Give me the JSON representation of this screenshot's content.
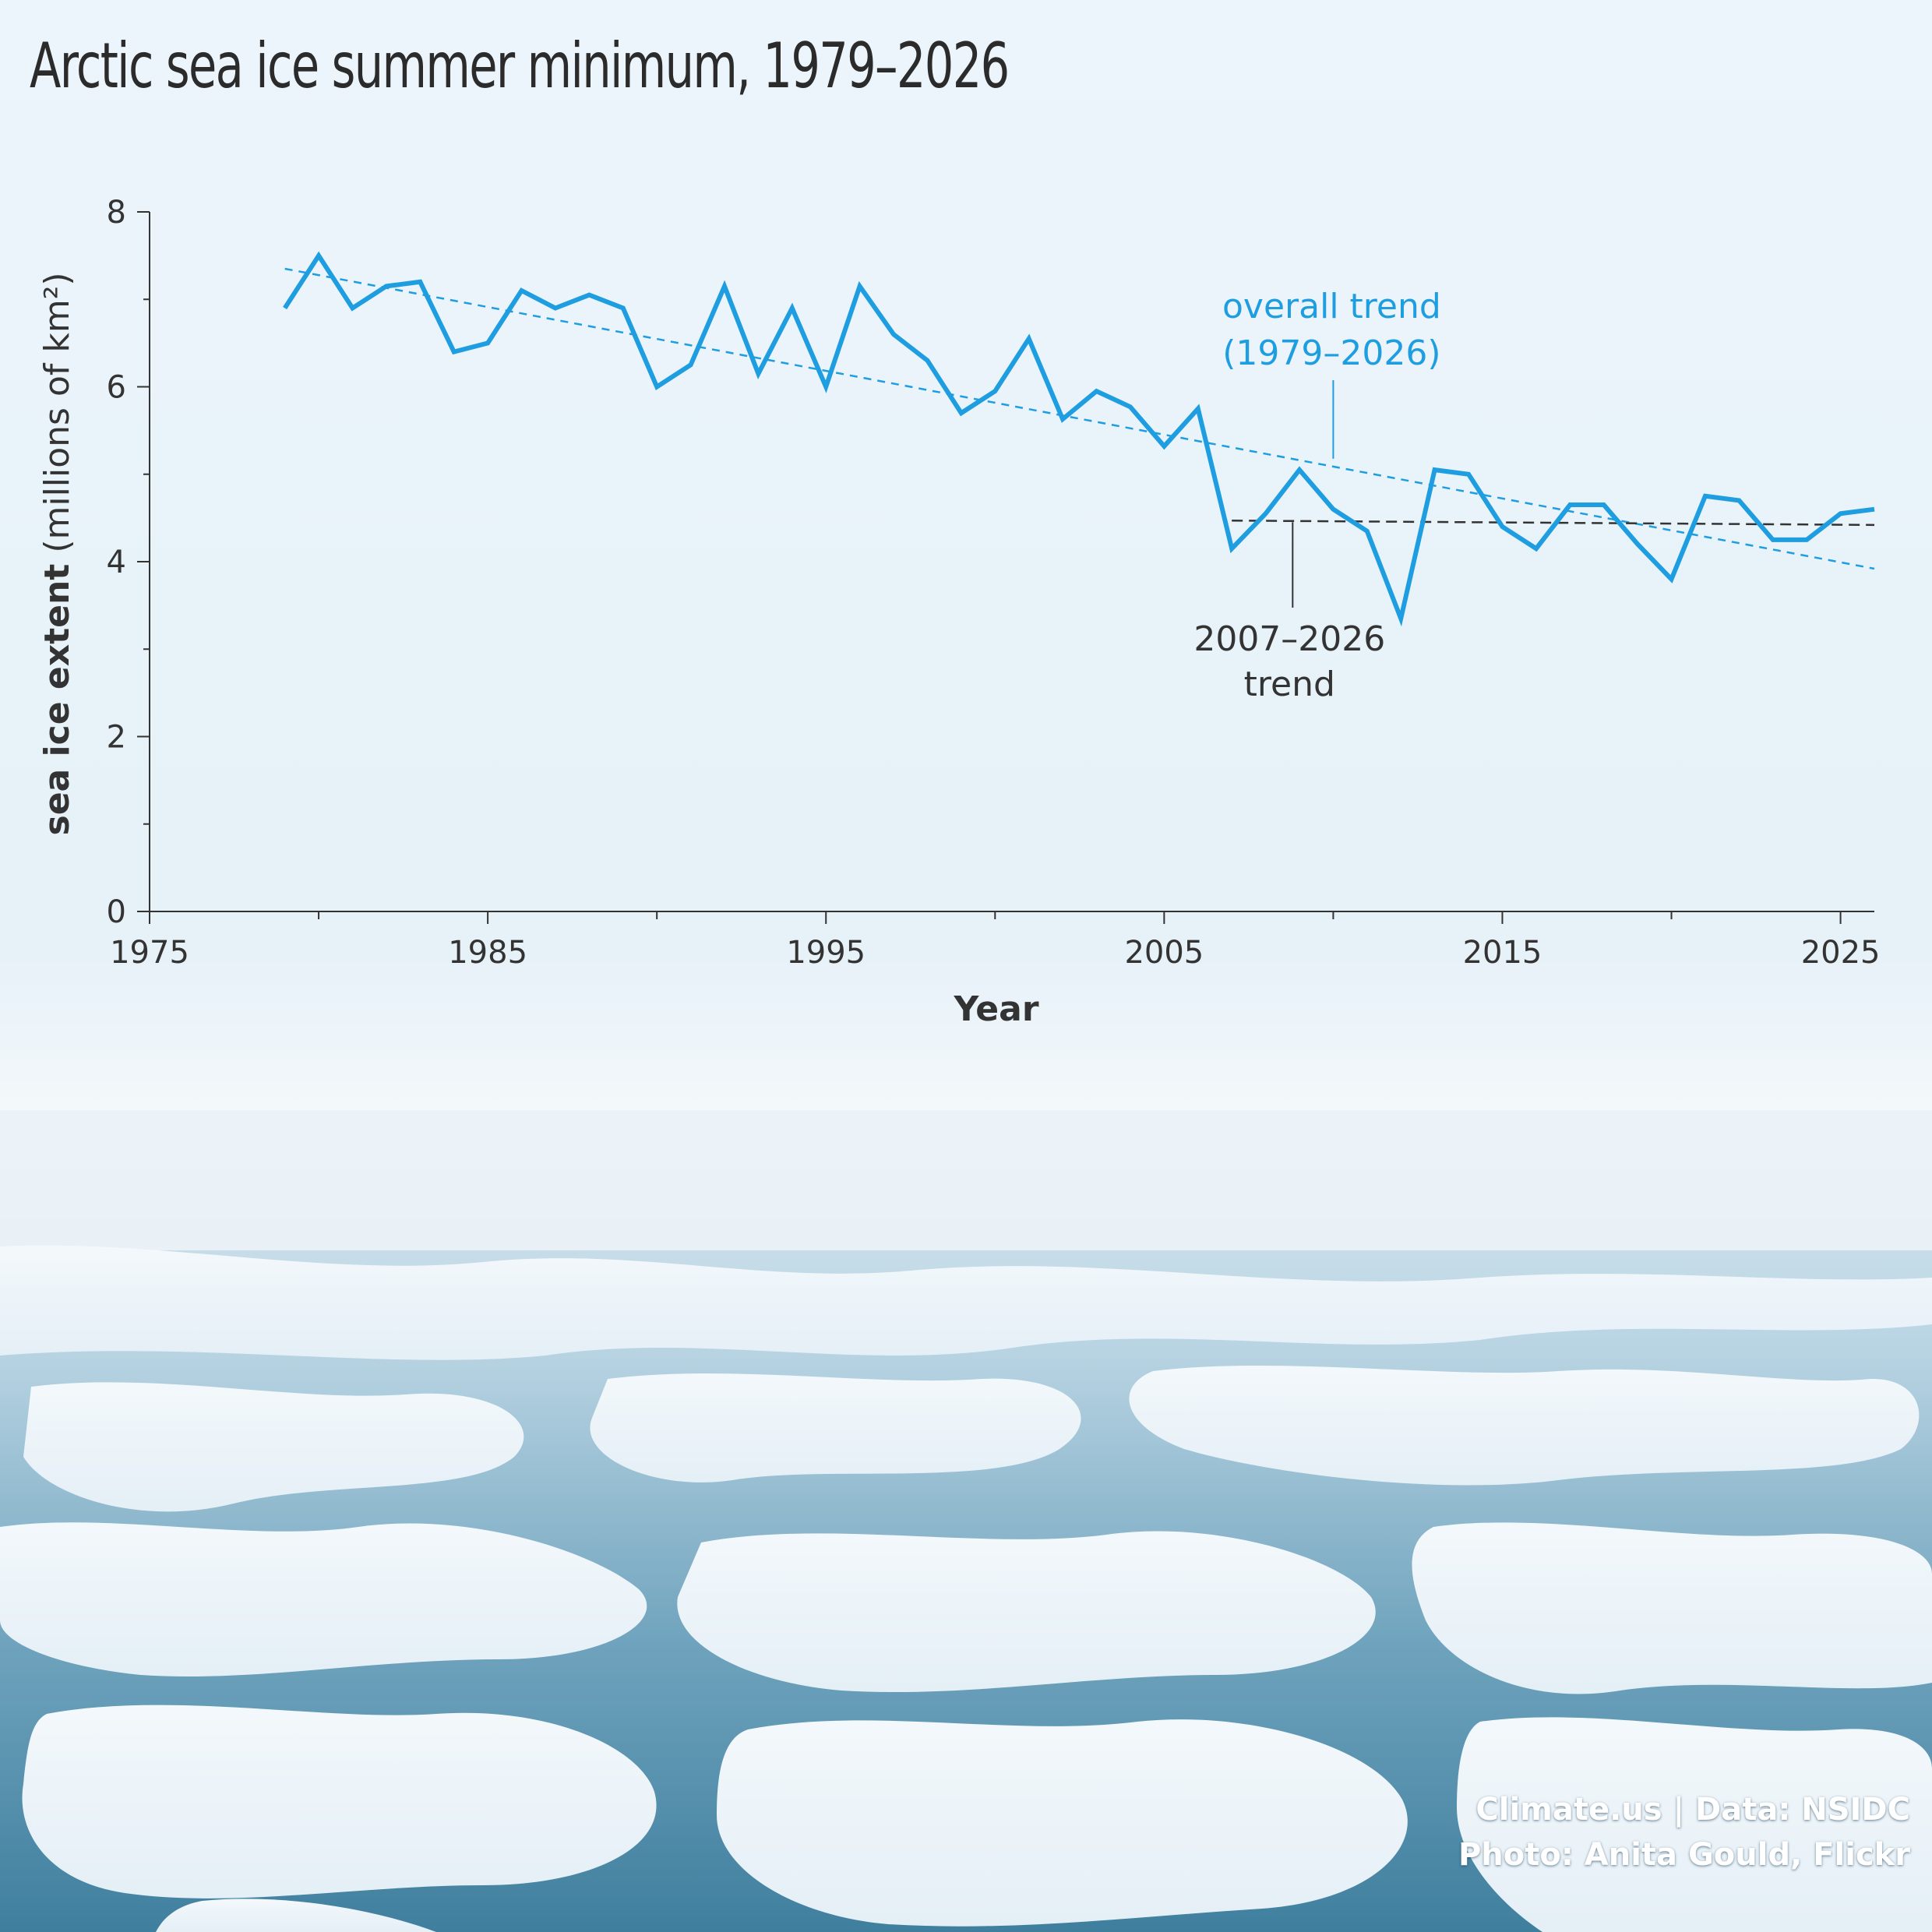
{
  "title": "Arctic sea ice summer minimum, 1979–2026",
  "credits": {
    "line1": "Climate.us | Data: NSIDC",
    "line2": "Photo: Anita Gould, Flickr"
  },
  "colors": {
    "series": "#1e9ee0",
    "overall_trend": "#1e9ee0",
    "recent_trend": "#333333",
    "axis": "#333333",
    "sky_top": "#e8f3fa",
    "ice": "#eef6fb",
    "water": "#6fa8c2"
  },
  "chart_data": {
    "type": "line",
    "title": "Arctic sea ice summer minimum, 1979–2026",
    "xlabel": "Year",
    "ylabel_bold": "sea ice extent",
    "ylabel_rest": " (millions of km²)",
    "xlim": [
      1975,
      2026
    ],
    "ylim": [
      0,
      8
    ],
    "x_ticks": [
      1975,
      1985,
      1995,
      2005,
      2015,
      2025
    ],
    "x_minor_ticks": [
      1980,
      1990,
      2000,
      2010,
      2020
    ],
    "y_ticks": [
      0,
      2,
      4,
      6,
      8
    ],
    "y_minor_ticks": [
      1,
      3,
      5,
      7
    ],
    "grid": false,
    "series": [
      {
        "x": [
          1979,
          1980,
          1981,
          1982,
          1983,
          1984,
          1985,
          1986,
          1987,
          1988,
          1989,
          1990,
          1991,
          1992,
          1993,
          1994,
          1995,
          1996,
          1997,
          1998,
          1999,
          2000,
          2001,
          2002,
          2003,
          2004,
          2005,
          2006,
          2007,
          2008,
          2009,
          2010,
          2011,
          2012,
          2013,
          2014,
          2015,
          2016,
          2017,
          2018,
          2019,
          2020,
          2021,
          2022,
          2023,
          2024,
          2025,
          2026
        ],
        "values": [
          6.9,
          7.5,
          6.9,
          7.15,
          7.2,
          6.4,
          6.5,
          7.1,
          6.9,
          7.05,
          6.9,
          6.0,
          6.25,
          7.15,
          6.15,
          6.9,
          6.0,
          7.15,
          6.6,
          6.3,
          5.7,
          5.95,
          6.55,
          5.63,
          5.95,
          5.77,
          5.32,
          5.75,
          4.15,
          4.55,
          5.05,
          4.6,
          4.35,
          3.35,
          5.05,
          5.0,
          4.4,
          4.15,
          4.65,
          4.65,
          4.2,
          3.8,
          4.75,
          4.7,
          4.25,
          4.25,
          4.55,
          4.6
        ]
      }
    ],
    "trend_lines": [
      {
        "label": "overall trend\n(1979–2026)",
        "label_line1": "overall trend",
        "label_line2": "(1979–2026)",
        "x": [
          1979,
          2026
        ],
        "y": [
          7.35,
          3.92
        ],
        "style": "dashed"
      },
      {
        "label": "2007–2026\ntrend",
        "label_line1": "2007–2026",
        "label_line2": "trend",
        "x": [
          2007,
          2026
        ],
        "y": [
          4.47,
          4.42
        ],
        "style": "dashed"
      }
    ]
  }
}
